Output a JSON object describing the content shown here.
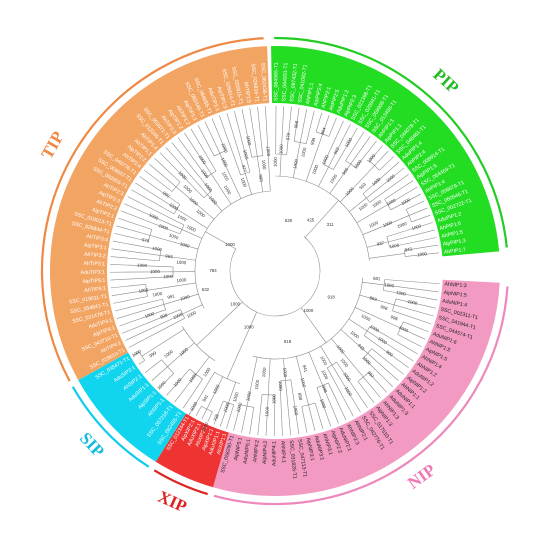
{
  "clades": [
    {
      "name": "PIP",
      "fill": "#22dd22",
      "arc": "#22cc22",
      "label_color": "#22bb22",
      "text_dark": false,
      "leaves": [
        "SSC_084565-T1",
        "SSC_064931-T1",
        "SSC_097432-T1",
        "SSC_041082-T1",
        "AhPIP1:1",
        "AipPIP2:4",
        "AhPIP2:1",
        "AhPIP2:5",
        "AduPIP1:2",
        "AipPIP2:3",
        "SSC_021398-T1",
        "SSC_020841-T1",
        "SSC_059908-T1",
        "SSC_013468-T1",
        "AhPIP1:3",
        "AipPIP1:1",
        "SSC_044078-T1",
        "SSC_046461-T1",
        "AduPIP1:4",
        "AhPIP2:4",
        "SSC_008914-T1",
        "AipPIP1:5",
        "SSC_054469-T1",
        "AhPIP1:4",
        "SSC_006679-T1",
        "SSC_060546-T1",
        "SSC_002722-T1",
        "AduPIP1:2",
        "AhPIP1:6",
        "AhPIP1:5",
        "AipPIP1:3",
        "AhPIP1:7"
      ],
      "bootstrap": [
        "1000",
        "1000",
        "979",
        "958",
        "1000",
        "1000",
        "998",
        "864",
        "1000",
        "1000",
        "902",
        "1000",
        "1000",
        "965",
        "1000",
        "1000",
        "1000",
        "563",
        "1000",
        "1000",
        "1000",
        "1000",
        "1000",
        "1000",
        "1000",
        "1000",
        "1000",
        "1000",
        "937",
        "1000",
        "843",
        "1000"
      ]
    },
    {
      "name": "NIP",
      "fill": "#f29ac2",
      "arc": "#ee88bb",
      "label_color": "#ee77b5",
      "text_dark": true,
      "leaves": [
        "AhNIP1:3",
        "AipNIP1:5",
        "AduNIP1:4",
        "SSC_002311-T1",
        "SSC_041944-T1",
        "SSC_044574-T1",
        "AduNIP1:6",
        "AhNIP1:5",
        "AipNIP1:5",
        "AhNIP1:4",
        "AhNIP1:2",
        "AduNIP1:2",
        "AipNIP1:2",
        "AhNIP1:1",
        "AduNIP1:1",
        "AduNIP1:3",
        "AhNIP1:3",
        "AipNIP1:3",
        "SSC_017510-T1",
        "SSC_042776-T1",
        "AhNIP2:1",
        "AhNIP2:3",
        "AduNIP2:1",
        "AipNIP2:2",
        "AhNIP3:1",
        "AduNIP3:1",
        "AipNIP3:1",
        "SSC_047113-T1",
        "SSC_031826-T1",
        "AhNIP4:1",
        "AduNIP4:1",
        "AipNIP4:2",
        "AhNIP4:2",
        "AduNIP5:1",
        "AipNIP5:1",
        "SSC_058290-T1"
      ],
      "bootstrap": [
        "681",
        "1000",
        "1000",
        "1000",
        "859",
        "908",
        "998",
        "1000",
        "1000",
        "1000",
        "1000",
        "999",
        "1000",
        "945",
        "1000",
        "997",
        "1000",
        "1000",
        "1000",
        "1000",
        "1000",
        "1000",
        "998",
        "1000",
        "941",
        "1000",
        "998",
        "1000",
        "1000",
        "1000",
        "1000",
        "1000",
        "1000",
        "1000",
        "1000",
        "1000"
      ]
    },
    {
      "name": "XIP",
      "fill": "#ee3333",
      "arc": "#dd2222",
      "label_color": "#dd2222",
      "text_dark": false,
      "leaves": [
        "AhXIP1:1",
        "AduXIP1:1",
        "AipXIP1:1",
        "AhXIP2:1",
        "AduXIP2:1",
        "AipXIP2:1",
        "SSC_012344-T1"
      ],
      "bootstrap": [
        "1000",
        "1000",
        "798",
        "1000",
        "1000",
        "941",
        "1000"
      ]
    },
    {
      "name": "SIP",
      "fill": "#11d5ee",
      "arc": "#11ccee",
      "label_color": "#11bbdd",
      "text_dark": false,
      "leaves": [
        "SSC_082455-T1",
        "SSC_057218-T1",
        "AhSIP1:1",
        "AipSIP1:1",
        "AduSIP1:1",
        "AhSIP2:1",
        "AduSIP2:1",
        "SSC_035471-T1"
      ],
      "bootstrap": [
        "1000",
        "1000",
        "1000",
        "1000",
        "1000",
        "1000",
        "999",
        "1000"
      ]
    },
    {
      "name": "TIP",
      "fill": "#f2a463",
      "arc": "#ee8844",
      "label_color": "#ee8844",
      "text_dark": false,
      "leaves": [
        "SSC_019610-T1",
        "AhTIP4:1",
        "SSC_043710-T1",
        "AipTIP4:1",
        "AduTIP4:1",
        "SSC_021478-T1",
        "SSC_054841-T1",
        "SSC_019011-T1",
        "AhTIP5:1",
        "AipTIP5:1",
        "AduTIP3:1",
        "AhTIP3:1",
        "AhTIP3:2",
        "AipTIP3:1",
        "AhTIP3:4",
        "SSC_026844-T1",
        "SSC_019013-T1",
        "AipTIP2:1",
        "AhTIP2:2",
        "AipTIP2:3",
        "AhTIP2:3",
        "SSC_092955-T1",
        "SSC_006657-T1",
        "SSC_049776-T1",
        "AhTIP2:4",
        "AipTIP2:2",
        "AhTIP1:1",
        "AhTIP1:4",
        "SSC_012345-T1",
        "SSC_003471-T1",
        "AhTIP1:3",
        "AipTIP1:2",
        "AhTIP1:2",
        "AipTIP1:1",
        "SSC_082446-T1",
        "SSC_084655-T1",
        "AduTIP1:1",
        "AipTIP1:3",
        "SSC_026814-T1",
        "SSC_026815-T1",
        "AhTIP1:5",
        "SSC_026816-T1",
        "SSC_062436-T1"
      ],
      "bootstrap": [
        "1000",
        "1000",
        "998",
        "1000",
        "1000",
        "991",
        "1000",
        "1000",
        "1000",
        "1000",
        "1000",
        "1000",
        "1000",
        "963",
        "1000",
        "976",
        "1000",
        "1000",
        "1000",
        "1000",
        "1000",
        "1000",
        "1000",
        "990",
        "1000",
        "1000",
        "1000",
        "1000",
        "1000",
        "1000",
        "1000",
        "1000",
        "1000",
        "1000",
        "1000",
        "1000",
        "1000",
        "977",
        "1000",
        "1000",
        "990",
        "1000",
        "1000"
      ]
    }
  ],
  "internal_bootstrap": [
    "528",
    "425",
    "311",
    "1000",
    "784",
    "532",
    "1000",
    "1000",
    "818",
    "1000",
    "918"
  ]
}
